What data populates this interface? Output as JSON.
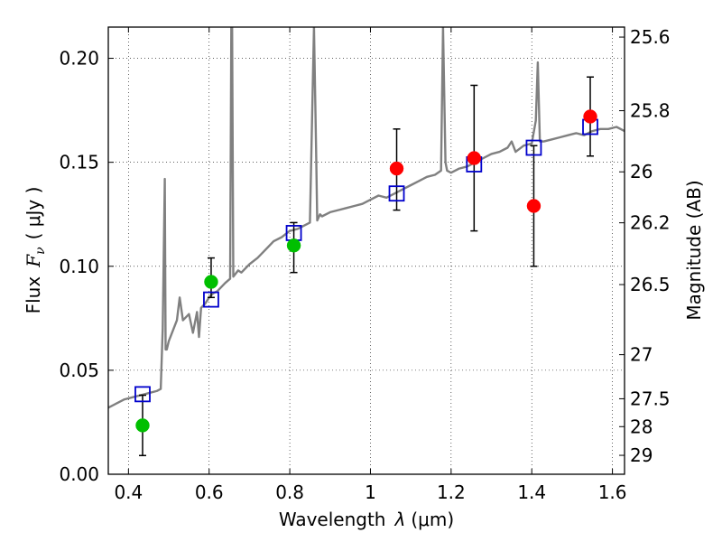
{
  "chart_data": {
    "type": "scatter",
    "xlabel_text": "Wavelength",
    "xlabel_symbol": "λ",
    "xlabel_unit": "(μm)",
    "ylabel_text": "Flux",
    "ylabel_symbol": "F",
    "ylabel_sub": "ν",
    "ylabel_unit": "( μJy )",
    "y2label": "Magnitude (AB)",
    "xlim": [
      0.35,
      1.63
    ],
    "ylim": [
      0.0,
      0.215
    ],
    "grid": true,
    "x_ticks": [
      {
        "value": 0.4,
        "label": "0.4"
      },
      {
        "value": 0.6,
        "label": "0.6"
      },
      {
        "value": 0.8,
        "label": "0.8"
      },
      {
        "value": 1.0,
        "label": "1"
      },
      {
        "value": 1.2,
        "label": "1.2"
      },
      {
        "value": 1.4,
        "label": "1.4"
      },
      {
        "value": 1.6,
        "label": "1.6"
      }
    ],
    "y_ticks": [
      {
        "value": 0.0,
        "label": "0.00"
      },
      {
        "value": 0.05,
        "label": "0.05"
      },
      {
        "value": 0.1,
        "label": "0.10"
      },
      {
        "value": 0.15,
        "label": "0.15"
      },
      {
        "value": 0.2,
        "label": "0.20"
      }
    ],
    "y2_ticks": [
      {
        "flux": 0.2102,
        "label": "25.6"
      },
      {
        "flux": 0.1748,
        "label": "25.8"
      },
      {
        "flux": 0.1454,
        "label": "26"
      },
      {
        "flux": 0.1209,
        "label": "26.2"
      },
      {
        "flux": 0.0912,
        "label": "26.5"
      },
      {
        "flux": 0.0575,
        "label": "27"
      },
      {
        "flux": 0.0363,
        "label": "27.5"
      },
      {
        "flux": 0.0229,
        "label": "28"
      },
      {
        "flux": 0.0091,
        "label": "29"
      }
    ],
    "model_color": "#808080",
    "model_spectrum": {
      "x": [
        0.35,
        0.37,
        0.39,
        0.41,
        0.43,
        0.45,
        0.47,
        0.48,
        0.485,
        0.49,
        0.492,
        0.495,
        0.5,
        0.52,
        0.527,
        0.535,
        0.55,
        0.56,
        0.57,
        0.575,
        0.58,
        0.59,
        0.6,
        0.61,
        0.62,
        0.64,
        0.652,
        0.655,
        0.657,
        0.66,
        0.672,
        0.68,
        0.7,
        0.72,
        0.74,
        0.76,
        0.78,
        0.8,
        0.82,
        0.84,
        0.85,
        0.86,
        0.865,
        0.868,
        0.875,
        0.88,
        0.9,
        0.92,
        0.94,
        0.96,
        0.98,
        1.0,
        1.02,
        1.04,
        1.06,
        1.08,
        1.1,
        1.12,
        1.14,
        1.16,
        1.175,
        1.18,
        1.186,
        1.19,
        1.2,
        1.22,
        1.24,
        1.26,
        1.28,
        1.3,
        1.32,
        1.34,
        1.35,
        1.36,
        1.38,
        1.4,
        1.41,
        1.415,
        1.42,
        1.43,
        1.45,
        1.47,
        1.49,
        1.51,
        1.53,
        1.55,
        1.57,
        1.59,
        1.61,
        1.63
      ],
      "y": [
        0.032,
        0.034,
        0.036,
        0.037,
        0.038,
        0.039,
        0.04,
        0.041,
        0.07,
        0.142,
        0.06,
        0.06,
        0.064,
        0.074,
        0.085,
        0.074,
        0.077,
        0.068,
        0.078,
        0.066,
        0.08,
        0.082,
        0.085,
        0.087,
        0.088,
        0.092,
        0.094,
        0.215,
        0.215,
        0.095,
        0.098,
        0.097,
        0.101,
        0.104,
        0.108,
        0.112,
        0.114,
        0.117,
        0.118,
        0.12,
        0.121,
        0.215,
        0.16,
        0.122,
        0.125,
        0.124,
        0.126,
        0.127,
        0.128,
        0.129,
        0.13,
        0.132,
        0.134,
        0.133,
        0.135,
        0.137,
        0.139,
        0.141,
        0.143,
        0.144,
        0.146,
        0.215,
        0.15,
        0.146,
        0.145,
        0.147,
        0.148,
        0.15,
        0.152,
        0.154,
        0.155,
        0.157,
        0.16,
        0.155,
        0.158,
        0.159,
        0.17,
        0.198,
        0.16,
        0.16,
        0.161,
        0.162,
        0.163,
        0.164,
        0.163,
        0.165,
        0.166,
        0.166,
        0.167,
        0.165
      ]
    },
    "series": [
      {
        "marker": "square-open",
        "color": "#0000cc",
        "x": [
          0.435,
          0.605,
          0.81,
          1.065,
          1.257,
          1.405,
          1.545
        ],
        "y": [
          0.0385,
          0.084,
          0.116,
          0.135,
          0.149,
          0.157,
          0.167
        ]
      },
      {
        "marker": "circle",
        "color": "#00bf00",
        "x": [
          0.435,
          0.605,
          0.81
        ],
        "y": [
          0.0235,
          0.0925,
          0.11
        ],
        "yerr_low": [
          0.009,
          0.085,
          0.097
        ],
        "yerr_high": [
          0.038,
          0.104,
          0.121
        ]
      },
      {
        "marker": "circle",
        "color": "#ff0000",
        "x": [
          1.065,
          1.257,
          1.405,
          1.545
        ],
        "y": [
          0.147,
          0.152,
          0.129,
          0.172
        ],
        "yerr_low": [
          0.127,
          0.117,
          0.1,
          0.153
        ],
        "yerr_high": [
          0.166,
          0.187,
          0.158,
          0.191
        ]
      }
    ]
  }
}
